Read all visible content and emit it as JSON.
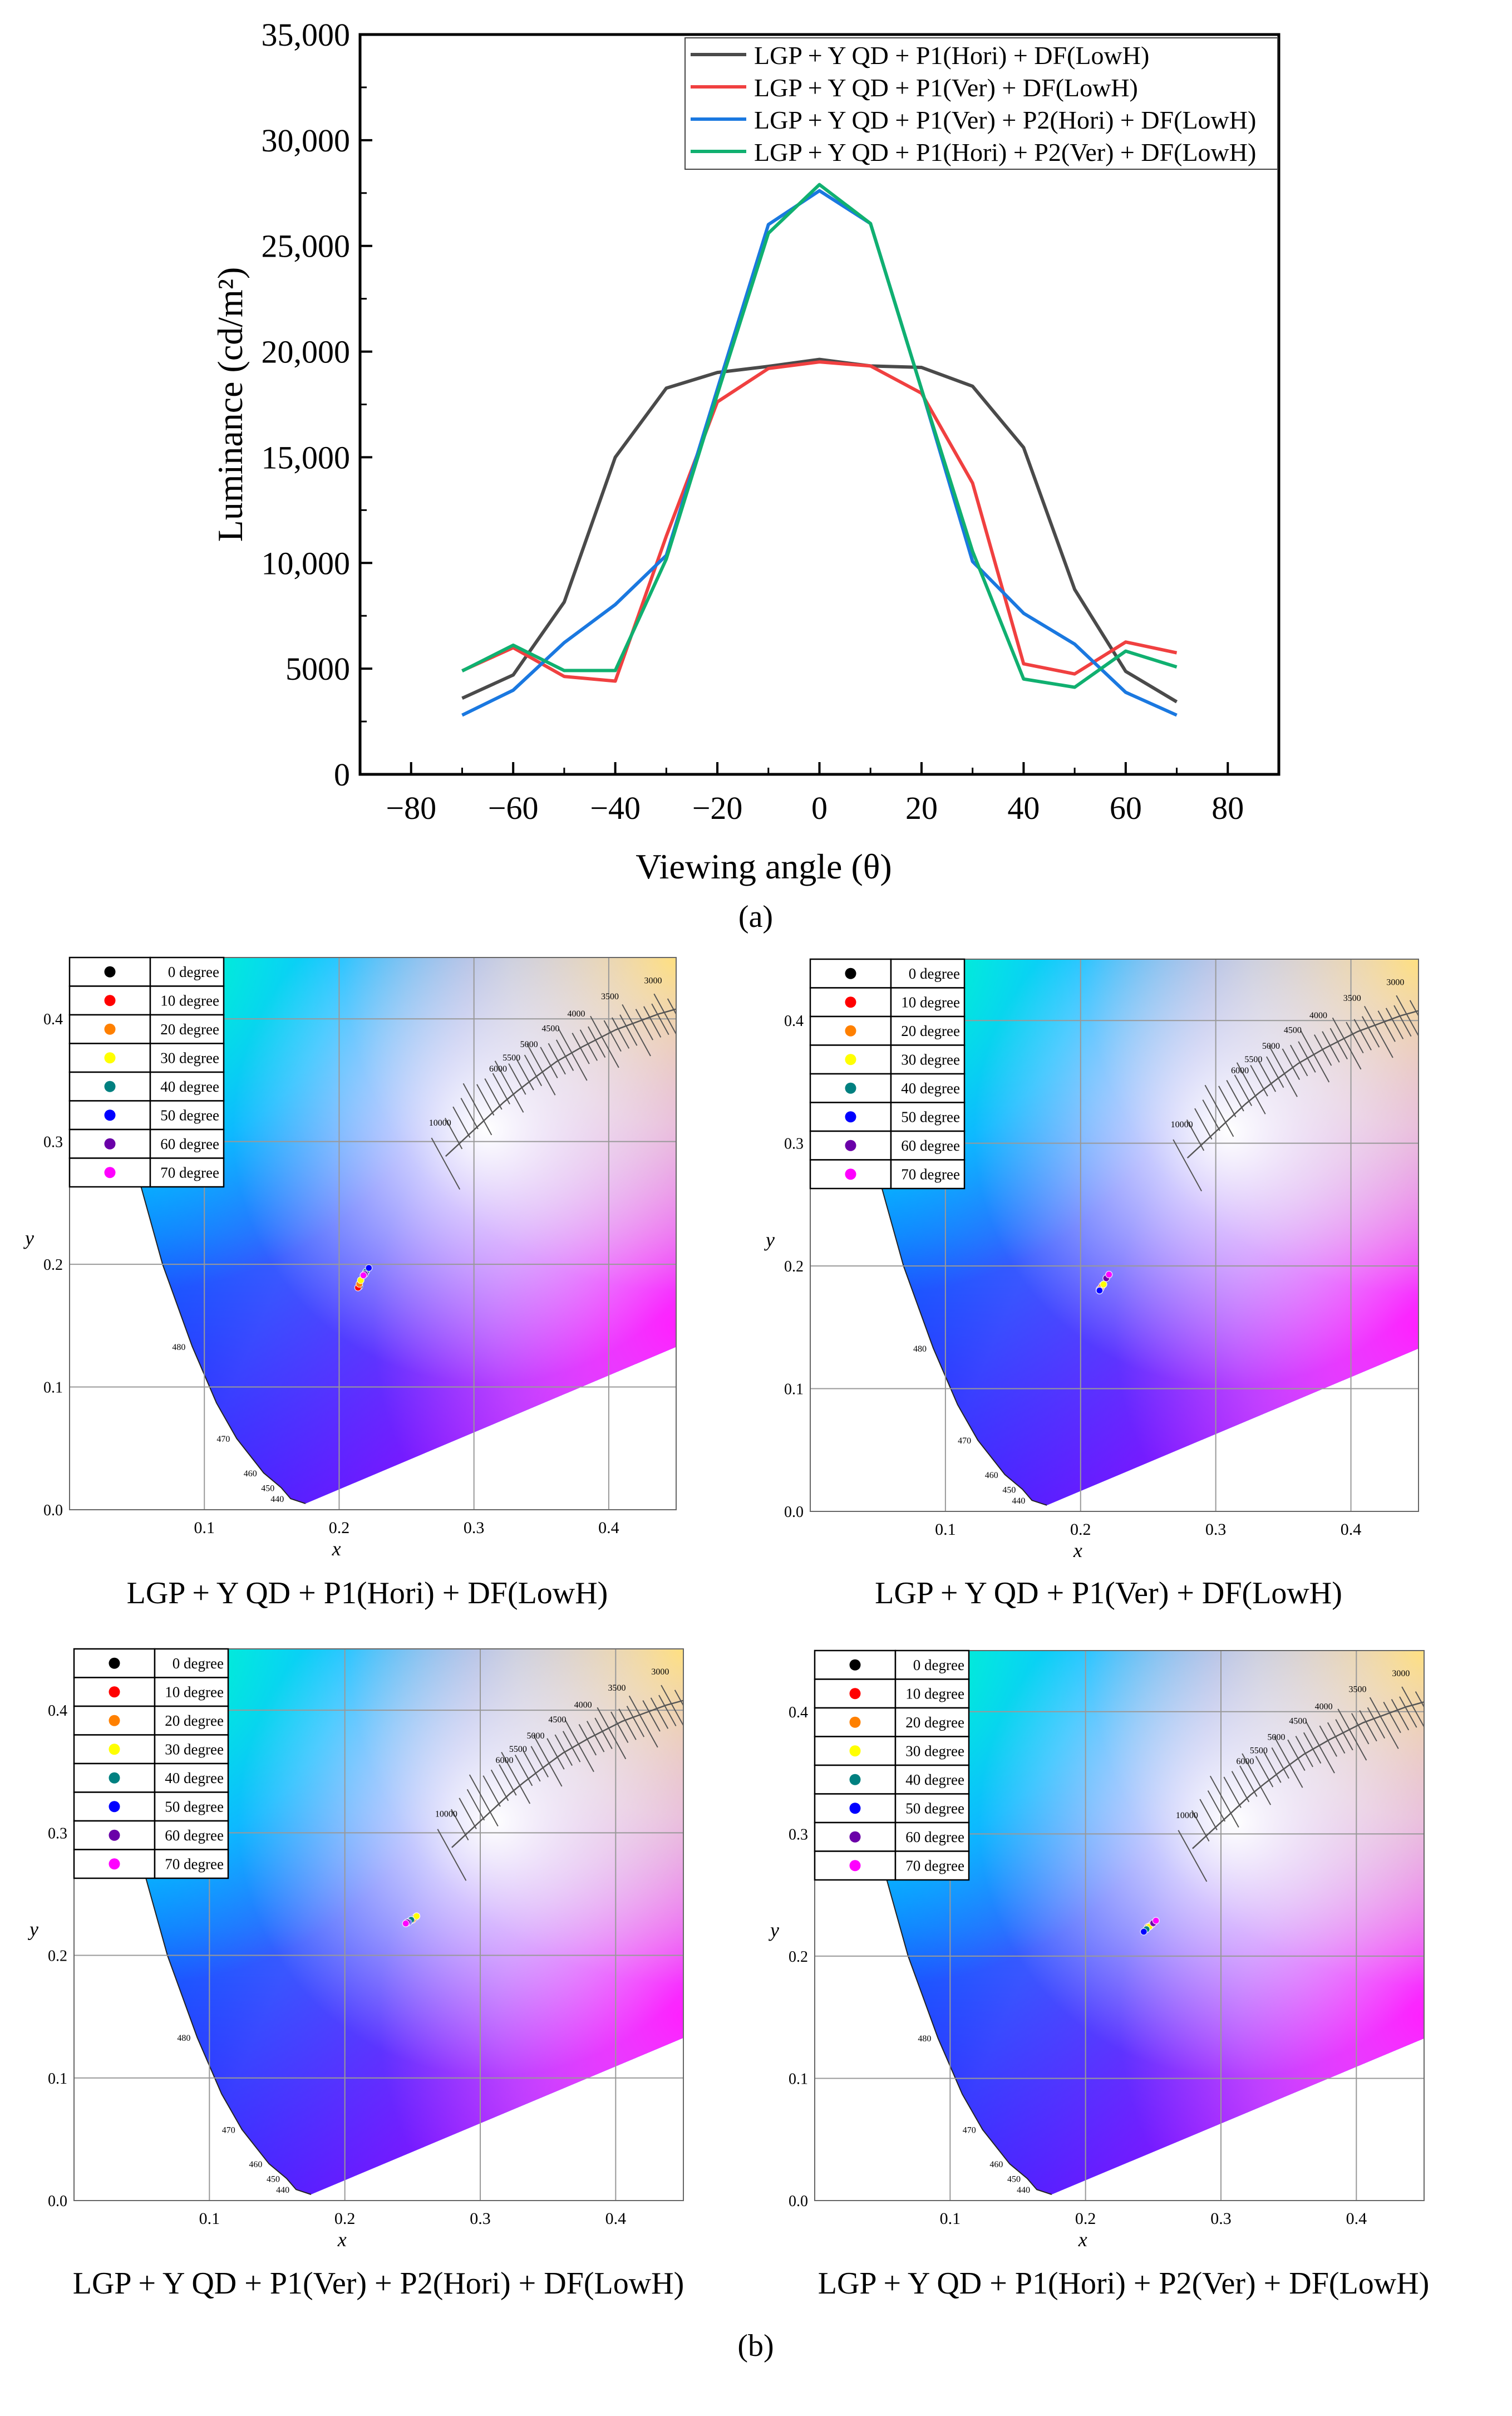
{
  "panel_labels": {
    "a": "(a)",
    "b": "(b)"
  },
  "chart_data": [
    {
      "type": "line",
      "title": "",
      "xlabel": "Viewing angle (θ)",
      "ylabel": "Luminance (cd/m²)",
      "xlim": [
        -90,
        90
      ],
      "ylim": [
        0,
        35000
      ],
      "xticks": [
        "−80",
        "−60",
        "−40",
        "−20",
        "0",
        "20",
        "40",
        "60",
        "80"
      ],
      "xtick_values": [
        -80,
        -60,
        -40,
        -20,
        0,
        20,
        40,
        60,
        80
      ],
      "yticks": [
        "0",
        "5000",
        "10,000",
        "15,000",
        "20,000",
        "25,000",
        "30,000",
        "35,000"
      ],
      "ytick_values": [
        0,
        5000,
        10000,
        15000,
        20000,
        25000,
        30000,
        35000
      ],
      "legend_position": "top-right",
      "x": [
        -70,
        -60,
        -50,
        -40,
        -30,
        -20,
        -10,
        0,
        10,
        20,
        30,
        40,
        50,
        60,
        70
      ],
      "series": [
        {
          "name": "LGP + Y QD + P1(Hori) + DF(LowH)",
          "color": "#4a4a4a",
          "values": [
            3600,
            4700,
            8150,
            15000,
            18270,
            19010,
            19300,
            19630,
            19320,
            19250,
            18360,
            15460,
            8750,
            4870,
            3430
          ]
        },
        {
          "name": "LGP + Y QD + P1(Ver) + DF(LowH)",
          "color": "#f04040",
          "values": [
            4900,
            5990,
            4630,
            4410,
            11270,
            17620,
            19200,
            19510,
            19320,
            18030,
            13780,
            5230,
            4750,
            6260,
            5750
          ]
        },
        {
          "name": "LGP + Y QD + P1(Ver) + P2(Hori) + DF(LowH)",
          "color": "#1a78e0",
          "values": [
            2800,
            3980,
            6230,
            8030,
            10360,
            18220,
            26010,
            27610,
            26060,
            18220,
            10070,
            7620,
            6160,
            3880,
            2800
          ]
        },
        {
          "name": "LGP + Y QD + P1(Hori) + P2(Ver) + DF(LowH)",
          "color": "#10b070",
          "values": [
            4890,
            6110,
            4910,
            4910,
            10190,
            17980,
            25600,
            27900,
            26060,
            18220,
            10550,
            4510,
            4120,
            5830,
            5080
          ]
        }
      ]
    },
    {
      "type": "scatter",
      "caption": "LGP + Y QD + P1(Hori) + DF(LowH)",
      "xlabel": "x",
      "ylabel": "y",
      "xlim": [
        0,
        0.45
      ],
      "ylim": [
        0,
        0.45
      ],
      "xticks": [
        "0.1",
        "0.2",
        "0.3",
        "0.4"
      ],
      "yticks": [
        "0.0",
        "0.1",
        "0.2",
        "0.3",
        "0.4"
      ],
      "points": [
        [
          0.215,
          0.182
        ],
        [
          0.214,
          0.181
        ],
        [
          0.215,
          0.184
        ],
        [
          0.216,
          0.187
        ],
        [
          0.22,
          0.194
        ],
        [
          0.222,
          0.197
        ],
        [
          0.219,
          0.192
        ],
        [
          0.218,
          0.191
        ]
      ]
    },
    {
      "type": "scatter",
      "caption": "LGP + Y QD  + P1(Ver) + DF(LowH)",
      "xlabel": "x",
      "ylabel": "y",
      "xlim": [
        0,
        0.45
      ],
      "ylim": [
        0,
        0.45
      ],
      "xticks": [
        "0.1",
        "0.2",
        "0.3",
        "0.4"
      ],
      "yticks": [
        "0.0",
        "0.1",
        "0.2",
        "0.3",
        "0.4"
      ],
      "points": [
        [
          0.214,
          0.181
        ],
        [
          0.215,
          0.182
        ],
        [
          0.216,
          0.184
        ],
        [
          0.217,
          0.185
        ],
        [
          0.214,
          0.18
        ],
        [
          0.214,
          0.18
        ],
        [
          0.219,
          0.19
        ],
        [
          0.221,
          0.193
        ]
      ]
    },
    {
      "type": "scatter",
      "caption": "LGP + Y QD + P1(Ver) + P2(Hori) + DF(LowH)",
      "xlabel": "x",
      "ylabel": "y",
      "xlim": [
        0,
        0.45
      ],
      "ylim": [
        0,
        0.45
      ],
      "xticks": [
        "0.1",
        "0.2",
        "0.3",
        "0.4"
      ],
      "yticks": [
        "0.0",
        "0.1",
        "0.2",
        "0.3",
        "0.4"
      ],
      "points": [
        [
          0.252,
          0.231
        ],
        [
          0.248,
          0.228
        ],
        [
          0.25,
          0.229
        ],
        [
          0.253,
          0.232
        ],
        [
          0.249,
          0.229
        ],
        [
          0.247,
          0.227
        ],
        [
          0.246,
          0.227
        ],
        [
          0.245,
          0.226
        ]
      ]
    },
    {
      "type": "scatter",
      "caption": "LGP + Y QD + P1(Hori) + P2(Ver) + DF(LowH)",
      "xlabel": "x",
      "ylabel": "y",
      "xlim": [
        0,
        0.45
      ],
      "ylim": [
        0,
        0.45
      ],
      "xticks": [
        "0.1",
        "0.2",
        "0.3",
        "0.4"
      ],
      "yticks": [
        "0.0",
        "0.1",
        "0.2",
        "0.3",
        "0.4"
      ],
      "points": [
        [
          0.248,
          0.225
        ],
        [
          0.249,
          0.226
        ],
        [
          0.246,
          0.224
        ],
        [
          0.247,
          0.224
        ],
        [
          0.245,
          0.222
        ],
        [
          0.243,
          0.22
        ],
        [
          0.25,
          0.227
        ],
        [
          0.252,
          0.229
        ]
      ]
    }
  ],
  "cie_legend": [
    {
      "label": "0 degree",
      "color": "#000000"
    },
    {
      "label": "10 degree",
      "color": "#ff0000"
    },
    {
      "label": "20 degree",
      "color": "#ff8000"
    },
    {
      "label": "30 degree",
      "color": "#ffff00"
    },
    {
      "label": "40 degree",
      "color": "#008080"
    },
    {
      "label": "50 degree",
      "color": "#0000ff"
    },
    {
      "label": "60 degree",
      "color": "#6a00a8"
    },
    {
      "label": "70 degree",
      "color": "#ff00ff"
    }
  ],
  "cct_labels": [
    "10000",
    "6000",
    "5500",
    "5000",
    "4500",
    "4000",
    "3500",
    "3000"
  ],
  "wavelength_labels": [
    "480",
    "470",
    "460",
    "450",
    "440"
  ]
}
